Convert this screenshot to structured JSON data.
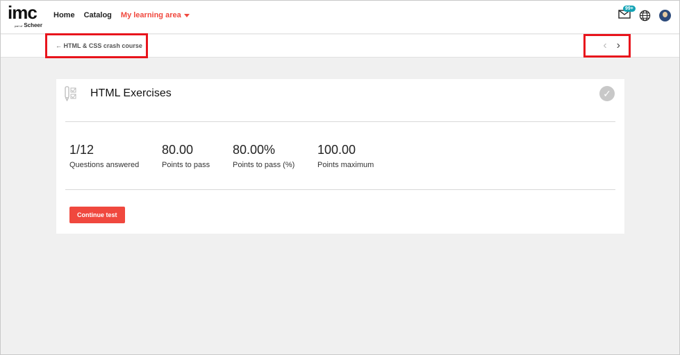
{
  "logo": {
    "text": "imc",
    "sub_small": "part of",
    "sub": "Scheer"
  },
  "nav": {
    "items": [
      {
        "label": "Home"
      },
      {
        "label": "Catalog"
      },
      {
        "label": "My learning area"
      }
    ]
  },
  "header": {
    "messages_badge": "99+"
  },
  "subbar": {
    "back_label": "← HTML & CSS crash course",
    "prev": "‹",
    "next": "›"
  },
  "card": {
    "title": "HTML Exercises",
    "check": "✓",
    "stats": [
      {
        "value": "1/12",
        "label": "Questions answered"
      },
      {
        "value": "80.00",
        "label": "Points to pass"
      },
      {
        "value": "80.00%",
        "label": "Points to pass (%)"
      },
      {
        "value": "100.00",
        "label": "Points maximum"
      }
    ],
    "button": "Continue test"
  },
  "colors": {
    "accent": "#f0483e",
    "badge": "#13a3b5",
    "highlight": "#e8141c"
  }
}
